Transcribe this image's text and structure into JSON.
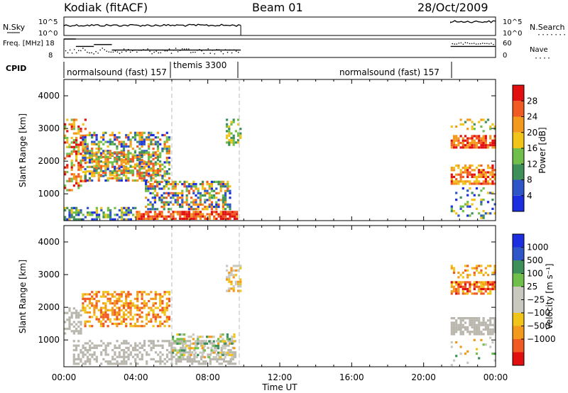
{
  "header": {
    "title": "Kodiak (fitACF)",
    "beam": "Beam 01",
    "date": "28/Oct/2009"
  },
  "colors": {
    "power_scale": [
      "#1b2ee0",
      "#2f56c8",
      "#3f8f5a",
      "#6fbf4a",
      "#f0c419",
      "#f39a1c",
      "#f15a22",
      "#e10f0f"
    ],
    "velocity_scale": [
      "#1b2ee0",
      "#2f56c8",
      "#3f8f5a",
      "#6fbf4a",
      "#c9c9bf",
      "#c9c9bf",
      "#f0c419",
      "#f39a1c",
      "#f15a22",
      "#e10f0f"
    ],
    "ground_scatter": "#b8b6ad"
  },
  "chart_data": [
    {
      "id": "noise",
      "type": "line",
      "left_label": "N.Sky",
      "right_label": "N.Search",
      "y_tick_labels": [
        "10^5",
        "10^0"
      ],
      "right_tick_labels": [
        "10^5",
        "10^0"
      ],
      "segments": [
        {
          "x_start": "00:00",
          "x_end": "09:50",
          "level": 0.55
        },
        {
          "x_start": "21:30",
          "x_end": "24:00",
          "level": 0.75
        }
      ]
    },
    {
      "id": "freq",
      "type": "line",
      "left_label": "Freq. [MHz]",
      "right_label": "Nave",
      "y_tick_labels": [
        "18",
        "8"
      ],
      "right_tick_labels": [
        "60",
        "0"
      ],
      "steps": [
        {
          "x_start": "00:00",
          "x_end": "00:40",
          "freq_mhz": 18
        },
        {
          "x_start": "00:40",
          "x_end": "01:40",
          "freq_mhz": 14
        },
        {
          "x_start": "01:40",
          "x_end": "02:40",
          "freq_mhz": 15
        },
        {
          "x_start": "02:40",
          "x_end": "09:50",
          "freq_mhz": 12
        },
        {
          "x_start": "21:30",
          "x_end": "24:00",
          "freq_mhz": 14
        }
      ]
    },
    {
      "id": "cpid",
      "type": "table",
      "label": "CPID",
      "entries": [
        {
          "text": "normalsound (fast) 157",
          "x_start": "00:00",
          "x_end": "06:00"
        },
        {
          "text": "themis 3300",
          "x_start": "06:00",
          "x_end": "09:50"
        },
        {
          "text": "normalsound (fast) 157",
          "x_start": "09:50",
          "x_end": "21:30"
        }
      ]
    },
    {
      "id": "power",
      "type": "heatmap",
      "ylabel": "Slant Range [km]",
      "ylim": [
        180,
        4500
      ],
      "y_ticks": [
        1000,
        2000,
        3000,
        4000
      ],
      "colorbar_label": "Power [dB]",
      "colorbar_ticks": [
        "4",
        "8",
        "12",
        "16",
        "20",
        "24",
        "28"
      ],
      "regions": [
        {
          "t0": 0.0,
          "t1": 1.2,
          "r0": 1100,
          "r1": 3300,
          "density": 0.45,
          "lvl": [
            3,
            7
          ]
        },
        {
          "t0": 1.0,
          "t1": 5.8,
          "r0": 1400,
          "r1": 2900,
          "density": 0.5,
          "lvl": [
            0,
            6
          ]
        },
        {
          "t0": 1.5,
          "t1": 5.4,
          "r0": 1600,
          "r1": 2300,
          "density": 0.55,
          "lvl": [
            2,
            6
          ]
        },
        {
          "t0": 4.0,
          "t1": 9.6,
          "r0": 250,
          "r1": 480,
          "density": 0.85,
          "lvl": [
            5,
            7
          ]
        },
        {
          "t0": 0.0,
          "t1": 4.0,
          "r0": 250,
          "r1": 600,
          "density": 0.5,
          "lvl": [
            0,
            4
          ]
        },
        {
          "t0": 4.5,
          "t1": 9.2,
          "r0": 550,
          "r1": 1400,
          "density": 0.55,
          "lvl": [
            0,
            6
          ]
        },
        {
          "t0": 9.0,
          "t1": 9.8,
          "r0": 2500,
          "r1": 3300,
          "density": 0.6,
          "lvl": [
            2,
            4
          ]
        },
        {
          "t0": 21.5,
          "t1": 24.0,
          "r0": 2400,
          "r1": 2800,
          "density": 0.75,
          "lvl": [
            5,
            7
          ]
        },
        {
          "t0": 21.5,
          "t1": 24.0,
          "r0": 1300,
          "r1": 1900,
          "density": 0.6,
          "lvl": [
            4,
            7
          ]
        },
        {
          "t0": 21.5,
          "t1": 24.0,
          "r0": 250,
          "r1": 1200,
          "density": 0.18,
          "lvl": [
            0,
            4
          ]
        },
        {
          "t0": 21.5,
          "t1": 24.0,
          "r0": 2900,
          "r1": 3300,
          "density": 0.25,
          "lvl": [
            2,
            5
          ]
        }
      ]
    },
    {
      "id": "velocity",
      "type": "heatmap",
      "ylabel": "Slant Range [km]",
      "ylim": [
        180,
        4500
      ],
      "y_ticks": [
        1000,
        2000,
        3000,
        4000
      ],
      "colorbar_label": "Velocity [m s⁻¹]",
      "colorbar_ticks": [
        "1000",
        "500",
        "100",
        "25",
        "−25",
        "−100",
        "−500",
        "−1000"
      ],
      "regions": [
        {
          "t0": 0.0,
          "t1": 1.0,
          "r0": 1200,
          "r1": 2000,
          "density": 0.5,
          "lvl": [
            4,
            5
          ],
          "ground": true
        },
        {
          "t0": 1.0,
          "t1": 5.8,
          "r0": 1400,
          "r1": 2500,
          "density": 0.5,
          "lvl": [
            6,
            8
          ]
        },
        {
          "t0": 0.5,
          "t1": 9.5,
          "r0": 250,
          "r1": 1000,
          "density": 0.45,
          "lvl": [
            4,
            5
          ],
          "ground": true
        },
        {
          "t0": 6.0,
          "t1": 9.5,
          "r0": 500,
          "r1": 1200,
          "density": 0.4,
          "lvl": [
            2,
            7
          ]
        },
        {
          "t0": 9.0,
          "t1": 9.8,
          "r0": 2500,
          "r1": 3300,
          "density": 0.5,
          "lvl": [
            4,
            7
          ]
        },
        {
          "t0": 21.5,
          "t1": 24.0,
          "r0": 2400,
          "r1": 2800,
          "density": 0.75,
          "lvl": [
            6,
            9
          ]
        },
        {
          "t0": 21.5,
          "t1": 24.0,
          "r0": 1200,
          "r1": 1700,
          "density": 0.8,
          "lvl": [
            4,
            5
          ],
          "ground": true
        },
        {
          "t0": 21.5,
          "t1": 24.0,
          "r0": 2900,
          "r1": 3300,
          "density": 0.3,
          "lvl": [
            6,
            8
          ]
        },
        {
          "t0": 21.5,
          "t1": 24.0,
          "r0": 250,
          "r1": 1100,
          "density": 0.12,
          "lvl": [
            2,
            7
          ]
        }
      ]
    }
  ],
  "x_axis": {
    "label": "Time UT",
    "ticks": [
      "00:00",
      "04:00",
      "08:00",
      "12:00",
      "16:00",
      "20:00",
      "00:00"
    ],
    "xlim_hours": [
      0,
      24
    ],
    "markers_hours": [
      6.0,
      9.83
    ]
  }
}
